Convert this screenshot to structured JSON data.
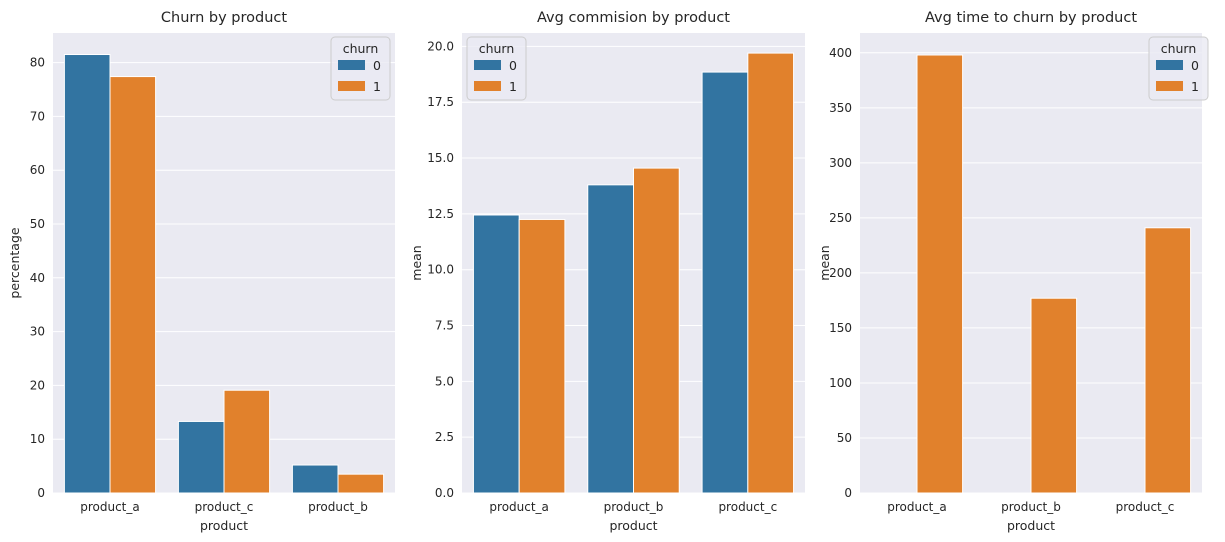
{
  "colors": {
    "0": "#3274a1",
    "1": "#e1812c",
    "background": "#eaeaf2",
    "grid": "#ffffff"
  },
  "legend_title": "churn",
  "chart_data": [
    {
      "type": "bar",
      "title": "Churn by product",
      "xlabel": "product",
      "ylabel": "percentage",
      "categories": [
        "product_a",
        "product_c",
        "product_b"
      ],
      "series": [
        {
          "name": "0",
          "values": [
            81.5,
            13.3,
            5.2
          ]
        },
        {
          "name": "1",
          "values": [
            77.4,
            19.1,
            3.5
          ]
        }
      ],
      "ylim": [
        0,
        85.5
      ],
      "yticks": [
        0,
        10,
        20,
        30,
        40,
        50,
        60,
        70,
        80
      ],
      "ytick_labels": [
        "0",
        "10",
        "20",
        "30",
        "40",
        "50",
        "60",
        "70",
        "80"
      ],
      "grid": true,
      "legend": "top-right"
    },
    {
      "type": "bar",
      "title": "Avg commision by product",
      "xlabel": "product",
      "ylabel": "mean",
      "categories": [
        "product_a",
        "product_b",
        "product_c"
      ],
      "series": [
        {
          "name": "0",
          "values": [
            12.45,
            13.8,
            18.85
          ]
        },
        {
          "name": "1",
          "values": [
            12.25,
            14.55,
            19.7
          ]
        }
      ],
      "ylim": [
        0,
        20.6
      ],
      "yticks": [
        0,
        2.5,
        5,
        7.5,
        10,
        12.5,
        15,
        17.5,
        20
      ],
      "ytick_labels": [
        "0.0",
        "2.5",
        "5.0",
        "7.5",
        "10.0",
        "12.5",
        "15.0",
        "17.5",
        "20.0"
      ],
      "grid": true,
      "legend": "top-left"
    },
    {
      "type": "bar",
      "title": "Avg time to churn by product",
      "xlabel": "product",
      "ylabel": "mean",
      "categories": [
        "product_a",
        "product_b",
        "product_c"
      ],
      "series": [
        {
          "name": "0",
          "values": [
            null,
            null,
            null
          ]
        },
        {
          "name": "1",
          "values": [
            398,
            177,
            241
          ]
        }
      ],
      "ylim": [
        0,
        418
      ],
      "yticks": [
        0,
        50,
        100,
        150,
        200,
        250,
        300,
        350,
        400
      ],
      "ytick_labels": [
        "0",
        "50",
        "100",
        "150",
        "200",
        "250",
        "300",
        "350",
        "400"
      ],
      "grid": true,
      "legend": "top-right"
    }
  ]
}
